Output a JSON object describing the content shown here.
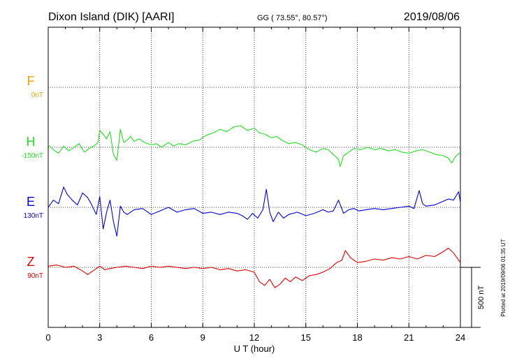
{
  "header": {
    "station": "Dixon Island (DIK)  [AARI]",
    "coords": "GG ( 73.55°,  80.57°)",
    "date": "2019/08/06"
  },
  "footer": {
    "plotted": "Plotted at 2019/09/06 01:35 UT"
  },
  "scale_bar": {
    "label": "500 nT",
    "value_nT": 500
  },
  "colors": {
    "F": "#f5a000",
    "H": "#22dd22",
    "E": "#0000dd",
    "Z": "#dd0000",
    "axis": "#000000",
    "grid": "#000000"
  },
  "chart_data": {
    "type": "line",
    "title": "",
    "xlabel": "U T (hour)",
    "ylabel": "",
    "xlim": [
      0,
      24
    ],
    "xticks": [
      0,
      3,
      6,
      9,
      12,
      15,
      18,
      21,
      24
    ],
    "grid": true,
    "series": [
      {
        "name": "F",
        "baseline_label": "0nT",
        "color": "#f5a000",
        "x": [],
        "y": []
      },
      {
        "name": "H",
        "baseline_label": "-150nT",
        "color": "#22dd22",
        "x": [
          0,
          0.3,
          0.6,
          0.9,
          1.2,
          1.5,
          1.8,
          2.1,
          2.4,
          2.7,
          2.9,
          3.0,
          3.2,
          3.4,
          3.6,
          3.8,
          4.0,
          4.2,
          4.4,
          4.6,
          4.8,
          5.0,
          5.3,
          5.6,
          6.0,
          6.3,
          6.6,
          7.0,
          7.3,
          7.6,
          8.0,
          8.4,
          8.8,
          9.2,
          9.6,
          10.0,
          10.4,
          10.8,
          11.2,
          11.6,
          12.0,
          12.3,
          12.6,
          13.0,
          13.3,
          13.6,
          14.0,
          14.4,
          14.8,
          15.2,
          15.6,
          16.0,
          16.3,
          16.6,
          16.9,
          17.0,
          17.2,
          17.5,
          17.8,
          18.2,
          18.6,
          19.0,
          19.4,
          19.8,
          20.2,
          20.6,
          21.0,
          21.4,
          21.8,
          22.2,
          22.6,
          23.0,
          23.3,
          23.5,
          23.7,
          24.0
        ],
        "y": [
          20,
          -20,
          -50,
          10,
          -30,
          0,
          30,
          -40,
          -10,
          15,
          40,
          140,
          110,
          70,
          130,
          -60,
          -110,
          150,
          40,
          60,
          90,
          50,
          70,
          40,
          20,
          30,
          0,
          40,
          10,
          30,
          20,
          50,
          60,
          100,
          120,
          150,
          130,
          170,
          180,
          140,
          160,
          120,
          110,
          80,
          90,
          60,
          30,
          40,
          20,
          -20,
          -40,
          -10,
          -20,
          -60,
          -100,
          -160,
          -70,
          -40,
          -10,
          -20,
          0,
          -20,
          -10,
          -30,
          -20,
          -40,
          -50,
          -30,
          -20,
          -40,
          -60,
          -70,
          -90,
          -130,
          -80,
          -40
        ]
      },
      {
        "name": "E",
        "baseline_label": "130nT",
        "color": "#0000dd",
        "x": [
          0,
          0.3,
          0.6,
          0.9,
          1.1,
          1.4,
          1.7,
          2.0,
          2.3,
          2.5,
          2.8,
          3.0,
          3.2,
          3.4,
          3.6,
          3.8,
          4.0,
          4.2,
          4.4,
          4.6,
          5.0,
          5.5,
          6.0,
          6.5,
          7.0,
          7.5,
          8.0,
          8.5,
          9.0,
          9.5,
          10.0,
          10.5,
          11.0,
          11.3,
          11.6,
          11.9,
          12.2,
          12.5,
          12.7,
          12.9,
          13.1,
          13.4,
          13.7,
          14.0,
          14.5,
          15.0,
          15.5,
          16.0,
          16.3,
          16.6,
          16.9,
          17.2,
          17.5,
          17.8,
          18.1,
          18.5,
          19.0,
          19.5,
          20.0,
          20.5,
          21.0,
          21.3,
          21.6,
          21.8,
          22.0,
          22.5,
          23.0,
          23.3,
          23.6,
          23.9,
          24.0
        ],
        "y": [
          0,
          60,
          30,
          170,
          110,
          60,
          20,
          120,
          80,
          30,
          -60,
          90,
          -180,
          -40,
          60,
          -120,
          -240,
          10,
          -40,
          -60,
          -20,
          -10,
          -60,
          -30,
          0,
          -40,
          -20,
          -10,
          -50,
          -40,
          -60,
          -40,
          -50,
          -70,
          -100,
          -50,
          -90,
          -20,
          150,
          -40,
          -120,
          -40,
          -90,
          -60,
          -40,
          -70,
          -50,
          -20,
          -40,
          -30,
          60,
          -50,
          -20,
          -10,
          -30,
          -20,
          -10,
          -20,
          -10,
          0,
          10,
          -10,
          140,
          30,
          10,
          20,
          50,
          70,
          60,
          130,
          40
        ]
      },
      {
        "name": "Z",
        "baseline_label": "90nT",
        "color": "#dd0000",
        "x": [
          0,
          0.5,
          1.0,
          1.5,
          2.0,
          2.3,
          2.6,
          3.0,
          3.3,
          3.6,
          4.0,
          4.5,
          5.0,
          5.5,
          6.0,
          6.5,
          7.0,
          7.5,
          8.0,
          8.5,
          9.0,
          9.5,
          10.0,
          10.5,
          11.0,
          11.5,
          12.0,
          12.3,
          12.6,
          12.9,
          13.2,
          13.5,
          13.8,
          14.1,
          14.4,
          14.8,
          15.2,
          15.6,
          16.0,
          16.4,
          16.8,
          17.1,
          17.3,
          17.6,
          18.0,
          18.5,
          19.0,
          19.5,
          20.0,
          20.5,
          21.0,
          21.5,
          22.0,
          22.5,
          23.0,
          23.3,
          23.6,
          24.0
        ],
        "y": [
          10,
          20,
          0,
          10,
          -30,
          -60,
          -30,
          10,
          -20,
          -10,
          0,
          10,
          0,
          -10,
          10,
          0,
          10,
          0,
          -10,
          0,
          -10,
          0,
          -20,
          -10,
          -30,
          -20,
          -40,
          -120,
          -150,
          -100,
          -170,
          -140,
          -90,
          -120,
          -80,
          -110,
          -70,
          -60,
          -40,
          -10,
          40,
          60,
          140,
          80,
          40,
          50,
          70,
          60,
          80,
          70,
          90,
          70,
          100,
          90,
          130,
          160,
          120,
          40
        ]
      }
    ]
  }
}
